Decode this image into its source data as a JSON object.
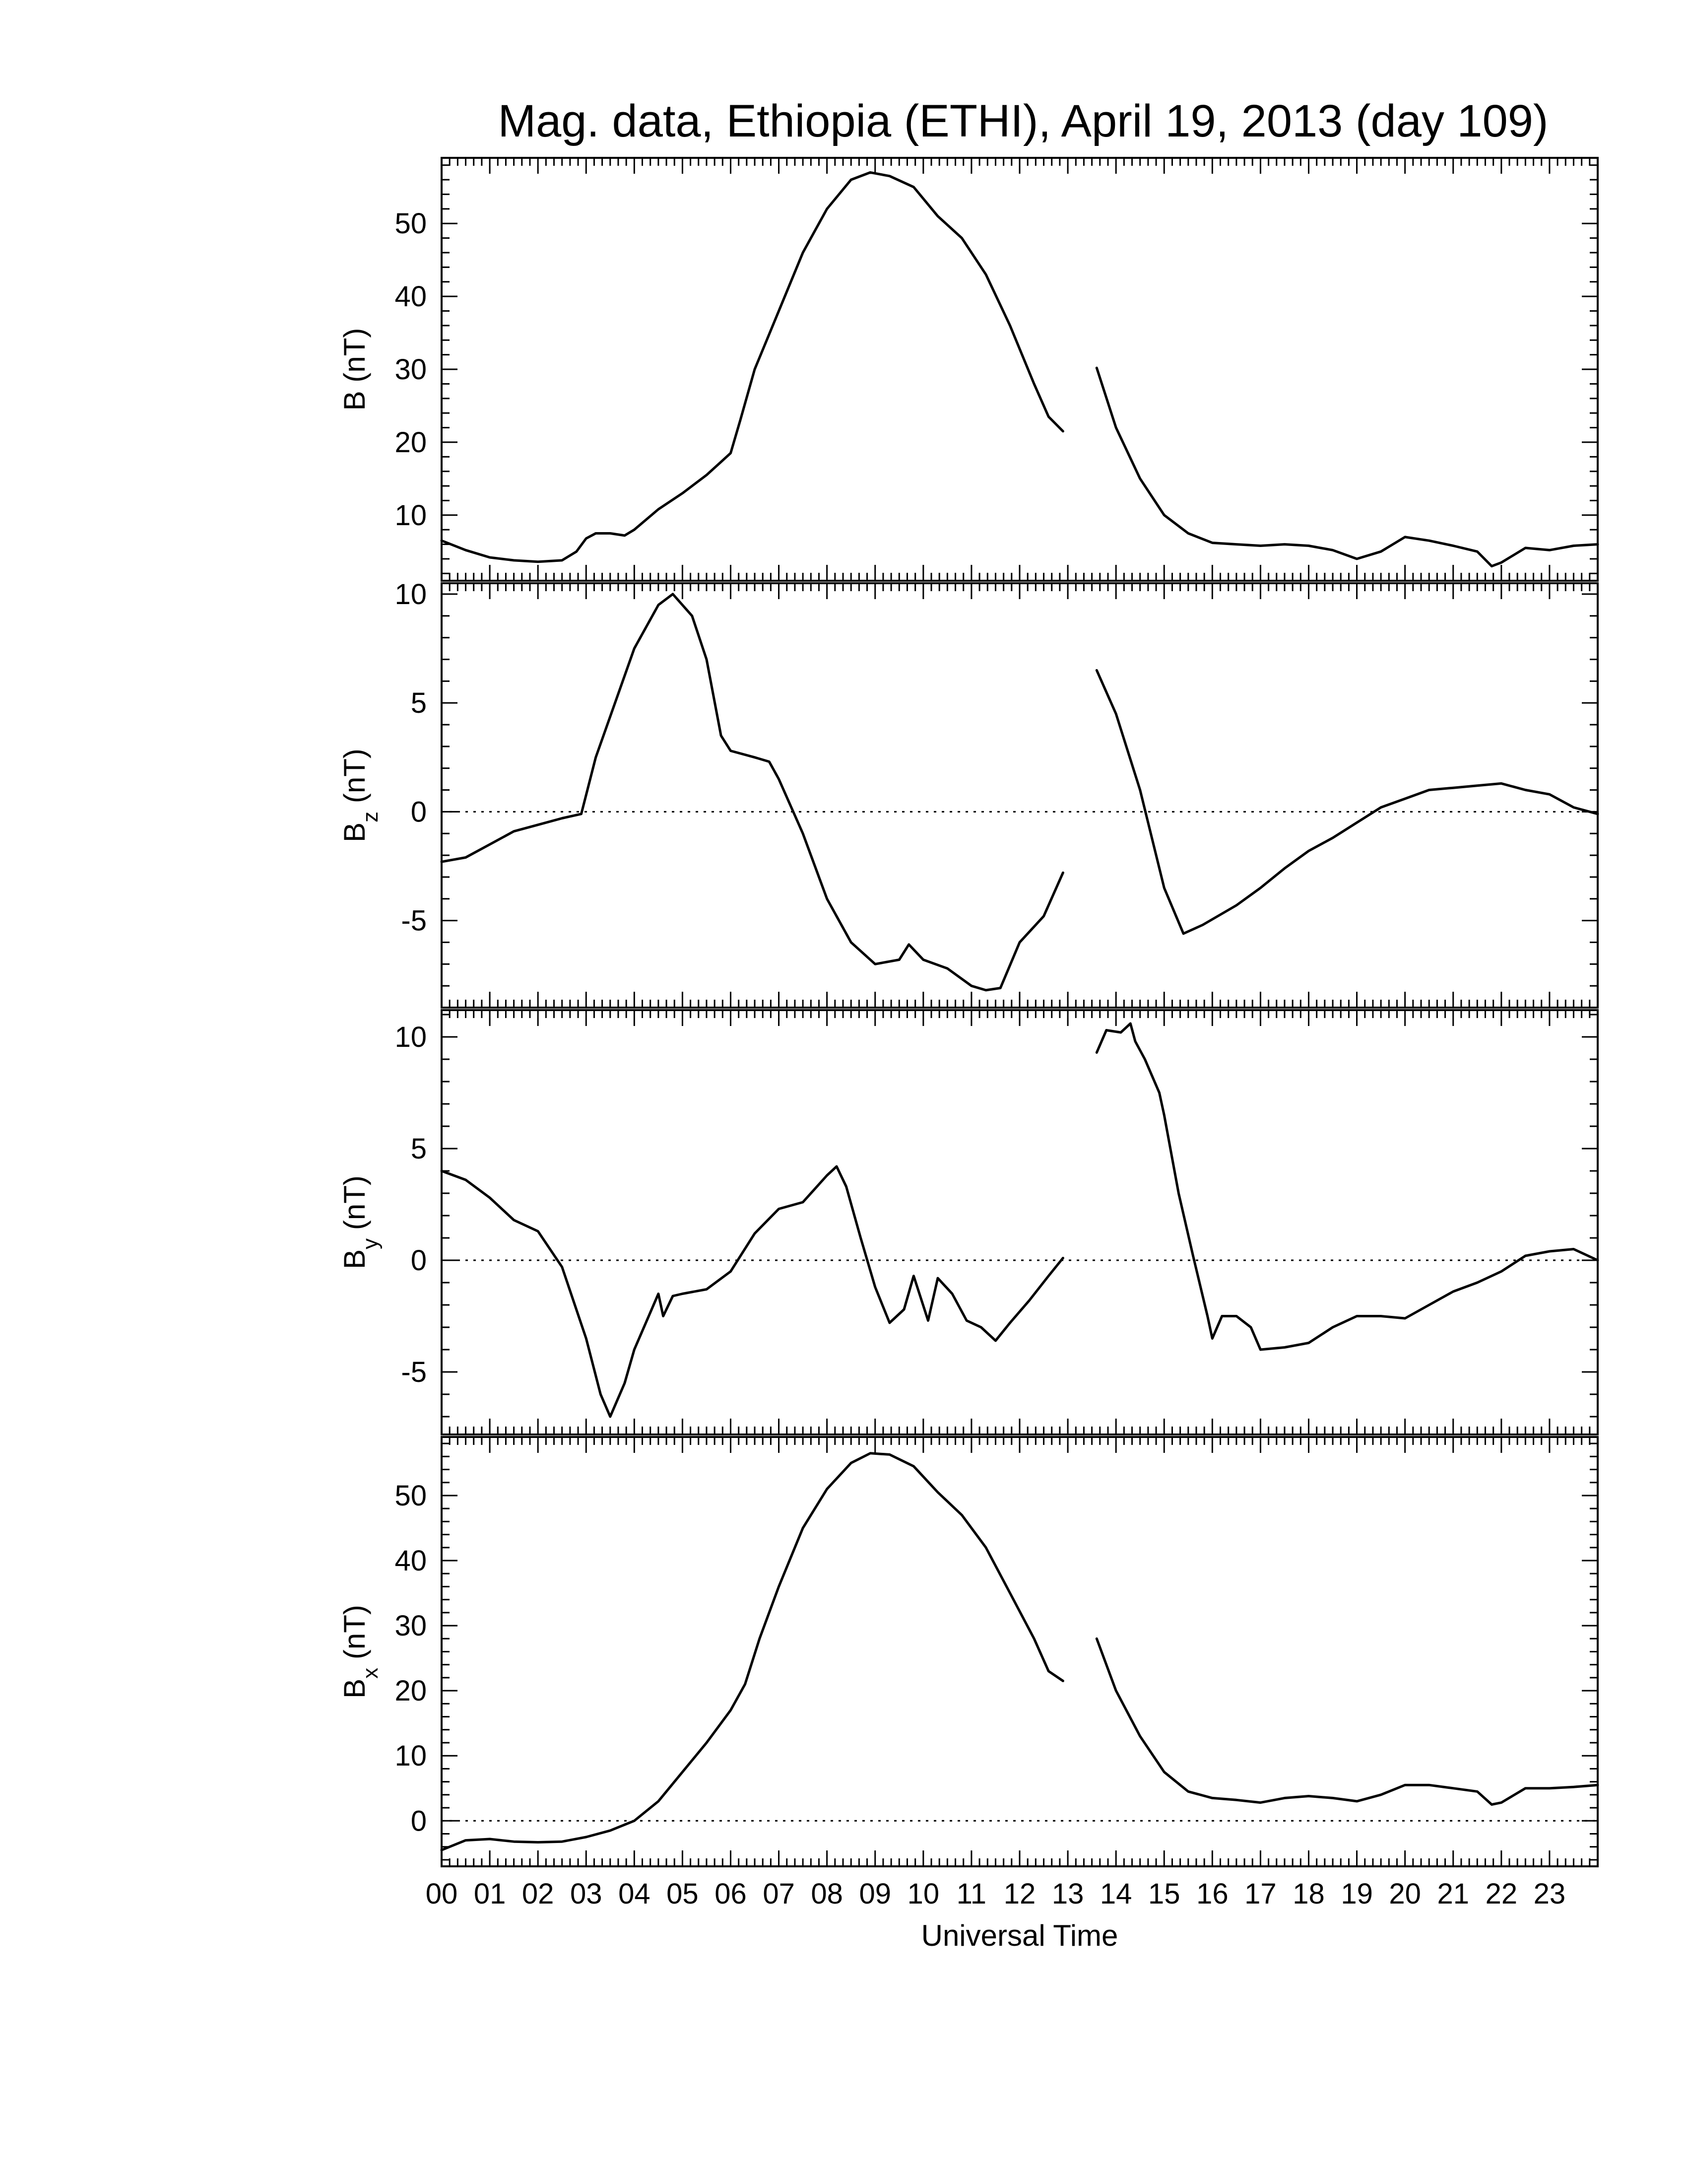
{
  "chart_data": {
    "type": "line",
    "title": "Mag. data, Ethiopia (ETHI), April 19, 2013 (day 109)",
    "xlabel": "Universal Time",
    "xlim": [
      0,
      24
    ],
    "xticks": [
      "00",
      "01",
      "02",
      "03",
      "04",
      "05",
      "06",
      "07",
      "08",
      "09",
      "10",
      "11",
      "12",
      "13",
      "14",
      "15",
      "16",
      "17",
      "18",
      "19",
      "20",
      "21",
      "22",
      "23"
    ],
    "data_gap_hours": [
      12.9,
      13.6
    ],
    "panels": [
      {
        "id": "B",
        "ylabel": "B (nT)",
        "ylabel_main": "B",
        "ylabel_sub": "",
        "ylabel_unit": "(nT)",
        "ylim": [
          1,
          59
        ],
        "yticks": [
          "10",
          "20",
          "30",
          "40",
          "50"
        ],
        "zero_line": false,
        "segments": [
          [
            [
              0.0,
              6.5
            ],
            [
              0.5,
              5.2
            ],
            [
              1.0,
              4.2
            ],
            [
              1.5,
              3.8
            ],
            [
              2.0,
              3.6
            ],
            [
              2.5,
              3.8
            ],
            [
              2.8,
              5.0
            ],
            [
              3.0,
              6.8
            ],
            [
              3.2,
              7.5
            ],
            [
              3.5,
              7.5
            ],
            [
              3.8,
              7.2
            ],
            [
              4.0,
              8.0
            ],
            [
              4.5,
              10.8
            ],
            [
              5.0,
              13.0
            ],
            [
              5.5,
              15.5
            ],
            [
              5.8,
              17.3
            ],
            [
              6.0,
              18.5
            ],
            [
              6.2,
              23.0
            ],
            [
              6.5,
              30.0
            ],
            [
              7.0,
              38.0
            ],
            [
              7.5,
              46.0
            ],
            [
              8.0,
              52.0
            ],
            [
              8.5,
              56.0
            ],
            [
              8.9,
              57.0
            ],
            [
              9.3,
              56.5
            ],
            [
              9.8,
              55.0
            ],
            [
              10.3,
              51.0
            ],
            [
              10.8,
              48.0
            ],
            [
              11.3,
              43.0
            ],
            [
              11.8,
              36.0
            ],
            [
              12.3,
              28.0
            ],
            [
              12.6,
              23.5
            ],
            [
              12.9,
              21.5
            ]
          ],
          [
            [
              13.6,
              30.2
            ],
            [
              14.0,
              22.0
            ],
            [
              14.5,
              15.0
            ],
            [
              15.0,
              10.0
            ],
            [
              15.5,
              7.5
            ],
            [
              16.0,
              6.2
            ],
            [
              16.5,
              6.0
            ],
            [
              17.0,
              5.8
            ],
            [
              17.5,
              6.0
            ],
            [
              18.0,
              5.8
            ],
            [
              18.5,
              5.2
            ],
            [
              19.0,
              4.0
            ],
            [
              19.5,
              5.0
            ],
            [
              20.0,
              7.0
            ],
            [
              20.5,
              6.5
            ],
            [
              21.0,
              5.8
            ],
            [
              21.5,
              5.0
            ],
            [
              21.8,
              3.0
            ],
            [
              22.0,
              3.5
            ],
            [
              22.5,
              5.5
            ],
            [
              23.0,
              5.2
            ],
            [
              23.5,
              5.8
            ],
            [
              24.0,
              6.0
            ]
          ]
        ]
      },
      {
        "id": "Bz",
        "ylabel": "Bz (nT)",
        "ylabel_main": "B",
        "ylabel_sub": "z",
        "ylabel_unit": "(nT)",
        "ylim": [
          -9,
          10.5
        ],
        "yticks": [
          "10",
          "5",
          "0",
          "-5"
        ],
        "zero_line": true,
        "segments": [
          [
            [
              0.0,
              -2.3
            ],
            [
              0.5,
              -2.1
            ],
            [
              1.0,
              -1.5
            ],
            [
              1.5,
              -0.9
            ],
            [
              2.0,
              -0.6
            ],
            [
              2.5,
              -0.3
            ],
            [
              2.9,
              -0.1
            ],
            [
              3.2,
              2.5
            ],
            [
              3.6,
              5.0
            ],
            [
              4.0,
              7.5
            ],
            [
              4.5,
              9.5
            ],
            [
              4.8,
              10.0
            ],
            [
              5.2,
              9.0
            ],
            [
              5.5,
              7.0
            ],
            [
              5.8,
              3.5
            ],
            [
              6.0,
              2.8
            ],
            [
              6.5,
              2.5
            ],
            [
              6.8,
              2.3
            ],
            [
              7.0,
              1.5
            ],
            [
              7.5,
              -1.0
            ],
            [
              8.0,
              -4.0
            ],
            [
              8.5,
              -6.0
            ],
            [
              9.0,
              -7.0
            ],
            [
              9.5,
              -6.8
            ],
            [
              9.7,
              -6.1
            ],
            [
              10.0,
              -6.8
            ],
            [
              10.5,
              -7.2
            ],
            [
              11.0,
              -8.0
            ],
            [
              11.3,
              -8.2
            ],
            [
              11.6,
              -8.1
            ],
            [
              12.0,
              -6.0
            ],
            [
              12.5,
              -4.8
            ],
            [
              12.9,
              -2.8
            ]
          ],
          [
            [
              13.6,
              6.5
            ],
            [
              14.0,
              4.5
            ],
            [
              14.5,
              1.0
            ],
            [
              15.0,
              -3.5
            ],
            [
              15.4,
              -5.6
            ],
            [
              15.8,
              -5.2
            ],
            [
              16.5,
              -4.3
            ],
            [
              17.0,
              -3.5
            ],
            [
              17.5,
              -2.6
            ],
            [
              18.0,
              -1.8
            ],
            [
              18.5,
              -1.2
            ],
            [
              19.0,
              -0.5
            ],
            [
              19.5,
              0.2
            ],
            [
              20.0,
              0.6
            ],
            [
              20.5,
              1.0
            ],
            [
              21.0,
              1.1
            ],
            [
              21.5,
              1.2
            ],
            [
              22.0,
              1.3
            ],
            [
              22.5,
              1.0
            ],
            [
              23.0,
              0.8
            ],
            [
              23.5,
              0.2
            ],
            [
              24.0,
              -0.1
            ]
          ]
        ]
      },
      {
        "id": "By",
        "ylabel": "By (nT)",
        "ylabel_main": "B",
        "ylabel_sub": "y",
        "ylabel_unit": "(nT)",
        "ylim": [
          -7.8,
          11.2
        ],
        "yticks": [
          "10",
          "5",
          "0",
          "-5"
        ],
        "zero_line": true,
        "segments": [
          [
            [
              0.0,
              4.0
            ],
            [
              0.5,
              3.6
            ],
            [
              1.0,
              2.8
            ],
            [
              1.5,
              1.8
            ],
            [
              2.0,
              1.3
            ],
            [
              2.5,
              -0.3
            ],
            [
              3.0,
              -3.5
            ],
            [
              3.3,
              -6.0
            ],
            [
              3.5,
              -7.0
            ],
            [
              3.8,
              -5.5
            ],
            [
              4.0,
              -4.0
            ],
            [
              4.3,
              -2.5
            ],
            [
              4.5,
              -1.5
            ],
            [
              4.6,
              -2.5
            ],
            [
              4.8,
              -1.6
            ],
            [
              5.0,
              -1.5
            ],
            [
              5.5,
              -1.3
            ],
            [
              6.0,
              -0.5
            ],
            [
              6.5,
              1.2
            ],
            [
              7.0,
              2.3
            ],
            [
              7.5,
              2.6
            ],
            [
              8.0,
              3.8
            ],
            [
              8.2,
              4.2
            ],
            [
              8.4,
              3.3
            ],
            [
              8.7,
              1.0
            ],
            [
              9.0,
              -1.2
            ],
            [
              9.3,
              -2.8
            ],
            [
              9.6,
              -2.2
            ],
            [
              9.8,
              -0.7
            ],
            [
              10.1,
              -2.7
            ],
            [
              10.3,
              -0.8
            ],
            [
              10.6,
              -1.5
            ],
            [
              10.9,
              -2.7
            ],
            [
              11.2,
              -3.0
            ],
            [
              11.5,
              -3.6
            ],
            [
              11.8,
              -2.8
            ],
            [
              12.2,
              -1.8
            ],
            [
              12.6,
              -0.7
            ],
            [
              12.9,
              0.1
            ]
          ],
          [
            [
              13.6,
              9.3
            ],
            [
              13.8,
              10.3
            ],
            [
              14.1,
              10.2
            ],
            [
              14.3,
              10.6
            ],
            [
              14.4,
              9.8
            ],
            [
              14.6,
              9.0
            ],
            [
              14.8,
              8.0
            ],
            [
              14.9,
              7.5
            ],
            [
              15.0,
              6.5
            ],
            [
              15.3,
              3.0
            ],
            [
              15.6,
              0.2
            ],
            [
              15.9,
              -2.5
            ],
            [
              16.0,
              -3.5
            ],
            [
              16.2,
              -2.5
            ],
            [
              16.5,
              -2.5
            ],
            [
              16.8,
              -3.0
            ],
            [
              17.0,
              -4.0
            ],
            [
              17.5,
              -3.9
            ],
            [
              18.0,
              -3.7
            ],
            [
              18.5,
              -3.0
            ],
            [
              19.0,
              -2.5
            ],
            [
              19.5,
              -2.5
            ],
            [
              20.0,
              -2.6
            ],
            [
              20.5,
              -2.0
            ],
            [
              21.0,
              -1.4
            ],
            [
              21.5,
              -1.0
            ],
            [
              22.0,
              -0.5
            ],
            [
              22.5,
              0.2
            ],
            [
              23.0,
              0.4
            ],
            [
              23.5,
              0.5
            ],
            [
              24.0,
              0.0
            ]
          ]
        ]
      },
      {
        "id": "Bx",
        "ylabel": "Bx (nT)",
        "ylabel_main": "B",
        "ylabel_sub": "x",
        "ylabel_unit": "(nT)",
        "ylim": [
          -7,
          59
        ],
        "yticks": [
          "50",
          "40",
          "30",
          "20",
          "10",
          "0"
        ],
        "zero_line": true,
        "segments": [
          [
            [
              0.0,
              -4.5
            ],
            [
              0.5,
              -3.0
            ],
            [
              1.0,
              -2.8
            ],
            [
              1.5,
              -3.2
            ],
            [
              2.0,
              -3.3
            ],
            [
              2.5,
              -3.2
            ],
            [
              3.0,
              -2.5
            ],
            [
              3.5,
              -1.5
            ],
            [
              4.0,
              0.0
            ],
            [
              4.5,
              3.0
            ],
            [
              5.0,
              7.5
            ],
            [
              5.5,
              12.0
            ],
            [
              6.0,
              17.0
            ],
            [
              6.3,
              21.0
            ],
            [
              6.6,
              28.0
            ],
            [
              7.0,
              36.0
            ],
            [
              7.5,
              45.0
            ],
            [
              8.0,
              51.0
            ],
            [
              8.5,
              55.0
            ],
            [
              8.9,
              56.5
            ],
            [
              9.3,
              56.3
            ],
            [
              9.8,
              54.5
            ],
            [
              10.3,
              50.5
            ],
            [
              10.8,
              47.0
            ],
            [
              11.3,
              42.0
            ],
            [
              11.8,
              35.0
            ],
            [
              12.3,
              28.0
            ],
            [
              12.6,
              23.0
            ],
            [
              12.9,
              21.5
            ]
          ],
          [
            [
              13.6,
              28.0
            ],
            [
              14.0,
              20.0
            ],
            [
              14.5,
              13.0
            ],
            [
              15.0,
              7.5
            ],
            [
              15.5,
              4.5
            ],
            [
              16.0,
              3.5
            ],
            [
              16.5,
              3.2
            ],
            [
              17.0,
              2.8
            ],
            [
              17.5,
              3.5
            ],
            [
              18.0,
              3.8
            ],
            [
              18.5,
              3.5
            ],
            [
              19.0,
              3.0
            ],
            [
              19.5,
              4.0
            ],
            [
              20.0,
              5.5
            ],
            [
              20.5,
              5.5
            ],
            [
              21.0,
              5.0
            ],
            [
              21.5,
              4.5
            ],
            [
              21.8,
              2.5
            ],
            [
              22.0,
              2.8
            ],
            [
              22.5,
              5.0
            ],
            [
              23.0,
              5.0
            ],
            [
              23.5,
              5.2
            ],
            [
              24.0,
              5.5
            ]
          ]
        ]
      }
    ]
  }
}
